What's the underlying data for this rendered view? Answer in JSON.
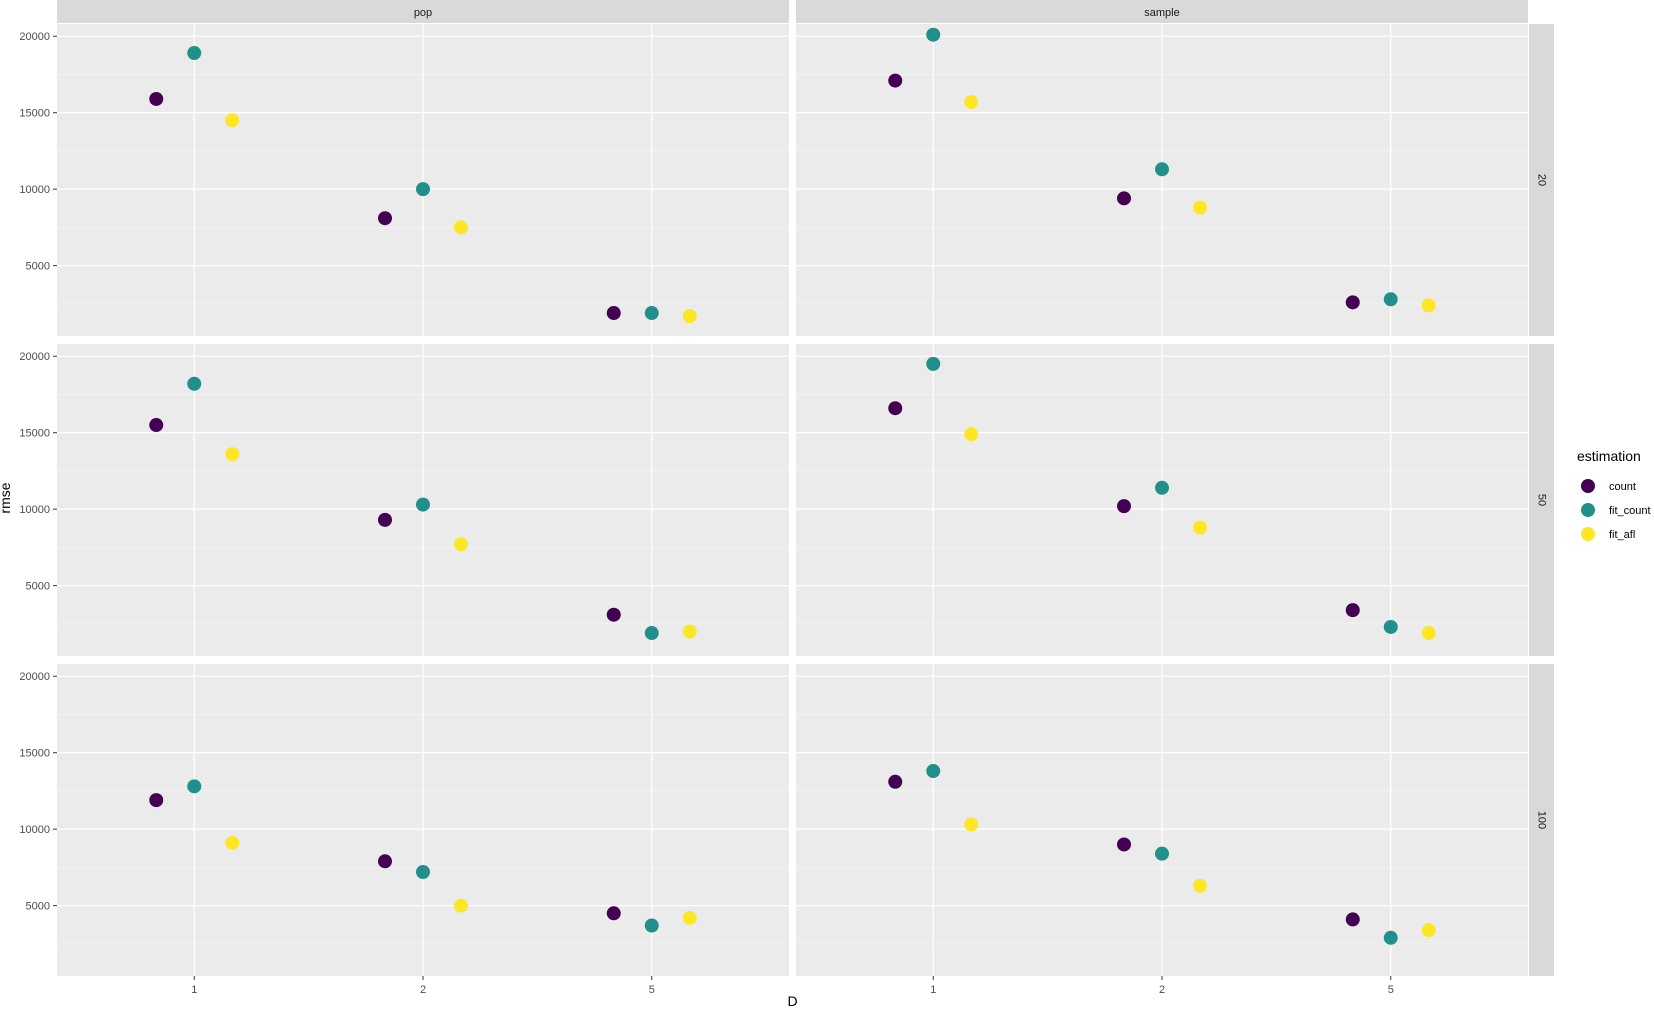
{
  "chart_data": {
    "type": "scatter",
    "xlabel": "D",
    "ylabel": "rmse",
    "x_categories": [
      "1",
      "2",
      "5"
    ],
    "y_ticks": [
      5000,
      10000,
      15000,
      20000
    ],
    "y_tick_labels": [
      "5000",
      "10000",
      "15000",
      "20000"
    ],
    "ylim": [
      400,
      20800
    ],
    "facet_cols": [
      "pop",
      "sample"
    ],
    "facet_rows": [
      "20",
      "50",
      "100"
    ],
    "legend": {
      "title": "estimation",
      "position": "right",
      "items": [
        {
          "name": "count",
          "color": "#440154"
        },
        {
          "name": "fit_count",
          "color": "#21908C"
        },
        {
          "name": "fit_afl",
          "color": "#FDE725"
        }
      ]
    },
    "series_names": [
      "count",
      "fit_count",
      "fit_afl"
    ],
    "panels": [
      {
        "col": "pop",
        "row": "20",
        "values": {
          "count": [
            15900,
            8100,
            1900
          ],
          "fit_count": [
            18900,
            10000,
            1900
          ],
          "fit_afl": [
            14500,
            7500,
            1700
          ]
        }
      },
      {
        "col": "sample",
        "row": "20",
        "values": {
          "count": [
            17100,
            9400,
            2600
          ],
          "fit_count": [
            20100,
            11300,
            2800
          ],
          "fit_afl": [
            15700,
            8800,
            2400
          ]
        }
      },
      {
        "col": "pop",
        "row": "50",
        "values": {
          "count": [
            15500,
            9300,
            3100
          ],
          "fit_count": [
            18200,
            10300,
            1900
          ],
          "fit_afl": [
            13600,
            7700,
            2000
          ]
        }
      },
      {
        "col": "sample",
        "row": "50",
        "values": {
          "count": [
            16600,
            10200,
            3400
          ],
          "fit_count": [
            19500,
            11400,
            2300
          ],
          "fit_afl": [
            14900,
            8800,
            1900
          ]
        }
      },
      {
        "col": "pop",
        "row": "100",
        "values": {
          "count": [
            11900,
            7900,
            4500
          ],
          "fit_count": [
            12800,
            7200,
            3700
          ],
          "fit_afl": [
            9100,
            5000,
            4200
          ]
        }
      },
      {
        "col": "sample",
        "row": "100",
        "values": {
          "count": [
            13100,
            9000,
            4100
          ],
          "fit_count": [
            13800,
            8400,
            2900
          ],
          "fit_afl": [
            10300,
            6300,
            3400
          ]
        }
      }
    ]
  }
}
